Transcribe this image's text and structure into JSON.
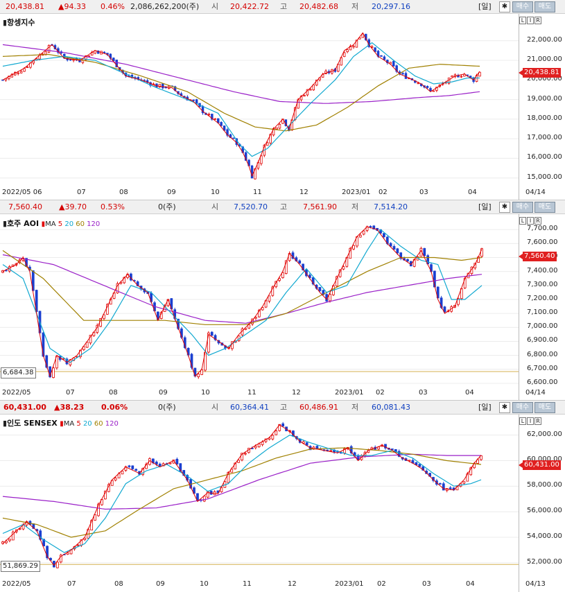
{
  "panels": [
    {
      "last": "20,438.81",
      "change": "▲94.33",
      "pct": "0.46%",
      "volume": "2,086,262,200(주)",
      "open_lbl": "시",
      "open": "20,422.72",
      "high_lbl": "고",
      "high": "20,482.68",
      "low_lbl": "저",
      "low": "20,297.16",
      "period": "[일]",
      "gear": "✱",
      "buy": "매수",
      "sell": "매도",
      "name": "항셍지수",
      "ma_prefix": "",
      "ma_labels": [],
      "last_box": "20,438.81",
      "min_box": "",
      "date_label": "04/14",
      "lr": [
        "L",
        "I",
        "R"
      ]
    },
    {
      "last": "7,560.40",
      "change": "▲39.70",
      "pct": "0.53%",
      "volume": "0(주)",
      "open_lbl": "시",
      "open": "7,520.70",
      "high_lbl": "고",
      "high": "7,561.90",
      "low_lbl": "저",
      "low": "7,514.20",
      "period": "[일]",
      "gear": "✱",
      "buy": "매수",
      "sell": "매도",
      "name": "호주 AOI",
      "ma_prefix": "MA",
      "ma_labels": [
        "5",
        "20",
        "60",
        "120"
      ],
      "last_box": "7,560.40",
      "min_box": "6,684.38",
      "date_label": "04/14",
      "lr": [
        "L",
        "I",
        "R"
      ]
    },
    {
      "last": "60,431.00",
      "change": "▲38.23",
      "pct": "0.06%",
      "volume": "0(주)",
      "open_lbl": "시",
      "open": "60,364.41",
      "high_lbl": "고",
      "high": "60,486.91",
      "low_lbl": "저",
      "low": "60,081.43",
      "period": "[일]",
      "gear": "✱",
      "buy": "매수",
      "sell": "매도",
      "name": "인도 SENSEX",
      "ma_prefix": "MA",
      "ma_labels": [
        "5",
        "20",
        "60",
        "120"
      ],
      "last_box": "60,431.00",
      "min_box": "51,869.29",
      "date_label": "04/13",
      "lr": [
        "L",
        "I",
        "R"
      ]
    }
  ],
  "colors": {
    "up": "#e00000",
    "down": "#1a3fd0",
    "ma5": "#e00000",
    "ma20": "#10a8d0",
    "ma60": "#a08000",
    "ma120": "#9a20c8",
    "minline": "#d4b050"
  },
  "chart_data": [
    {
      "type": "candlestick",
      "title": "항셍지수",
      "x_ticks": [
        "2022/05 06",
        "07",
        "08",
        "09",
        "10",
        "11",
        "12",
        "2023/01",
        "02",
        "03",
        "04"
      ],
      "y_ticks": [
        "22,000.00",
        "21,000.00",
        "20,000.00",
        "19,000.00",
        "18,000.00",
        "17,000.00",
        "16,000.00",
        "15,000.00"
      ],
      "y_values": [
        22000,
        21000,
        20000,
        19000,
        18000,
        17000,
        16000,
        15000
      ],
      "ylim": [
        14600,
        23300
      ],
      "close_path": [
        [
          0,
          20000
        ],
        [
          7,
          20600
        ],
        [
          13,
          21400
        ],
        [
          16,
          21800
        ],
        [
          20,
          21100
        ],
        [
          25,
          21000
        ],
        [
          30,
          21500
        ],
        [
          34,
          21300
        ],
        [
          40,
          20200
        ],
        [
          45,
          20000
        ],
        [
          50,
          19700
        ],
        [
          55,
          19600
        ],
        [
          58,
          19200
        ],
        [
          62,
          18900
        ],
        [
          65,
          18400
        ],
        [
          70,
          17800
        ],
        [
          73,
          17200
        ],
        [
          76,
          16800
        ],
        [
          78,
          16300
        ],
        [
          80,
          15600
        ],
        [
          81,
          15100
        ],
        [
          83,
          15800
        ],
        [
          85,
          16600
        ],
        [
          88,
          17500
        ],
        [
          91,
          18000
        ],
        [
          93,
          17500
        ],
        [
          96,
          19000
        ],
        [
          100,
          19600
        ],
        [
          104,
          20300
        ],
        [
          108,
          20500
        ],
        [
          111,
          21500
        ],
        [
          114,
          21800
        ],
        [
          116,
          22200
        ],
        [
          117,
          22400
        ],
        [
          119,
          21800
        ],
        [
          122,
          21200
        ],
        [
          126,
          20800
        ],
        [
          129,
          20300
        ],
        [
          132,
          20100
        ],
        [
          136,
          19800
        ],
        [
          139,
          19400
        ],
        [
          143,
          19800
        ],
        [
          147,
          20200
        ],
        [
          150,
          20300
        ],
        [
          153,
          20000
        ],
        [
          155,
          20439
        ]
      ],
      "ma20": [
        [
          0,
          20700
        ],
        [
          10,
          21000
        ],
        [
          20,
          21200
        ],
        [
          30,
          21000
        ],
        [
          40,
          20300
        ],
        [
          50,
          19600
        ],
        [
          60,
          19000
        ],
        [
          70,
          18300
        ],
        [
          77,
          16700
        ],
        [
          81,
          16100
        ],
        [
          86,
          16500
        ],
        [
          92,
          17500
        ],
        [
          100,
          18800
        ],
        [
          108,
          20000
        ],
        [
          114,
          21200
        ],
        [
          120,
          21900
        ],
        [
          127,
          21000
        ],
        [
          134,
          20200
        ],
        [
          140,
          19800
        ],
        [
          146,
          19900
        ],
        [
          151,
          20100
        ],
        [
          155,
          20100
        ]
      ],
      "ma60": [
        [
          0,
          21200
        ],
        [
          15,
          21300
        ],
        [
          30,
          20900
        ],
        [
          45,
          20200
        ],
        [
          60,
          19400
        ],
        [
          72,
          18300
        ],
        [
          82,
          17600
        ],
        [
          92,
          17400
        ],
        [
          102,
          17700
        ],
        [
          112,
          18600
        ],
        [
          122,
          19700
        ],
        [
          132,
          20600
        ],
        [
          142,
          20800
        ],
        [
          155,
          20700
        ]
      ],
      "ma120": [
        [
          0,
          21800
        ],
        [
          20,
          21400
        ],
        [
          40,
          20800
        ],
        [
          60,
          20000
        ],
        [
          75,
          19400
        ],
        [
          90,
          18900
        ],
        [
          105,
          18800
        ],
        [
          120,
          18900
        ],
        [
          135,
          19100
        ],
        [
          145,
          19200
        ],
        [
          155,
          19400
        ]
      ]
    },
    {
      "type": "candlestick",
      "title": "호주 AOI",
      "series_names": [
        "MA 5",
        "20",
        "60",
        "120"
      ],
      "x_ticks": [
        "2022/05",
        "07",
        "08",
        "09",
        "10",
        "11",
        "12",
        "2023/01",
        "02",
        "03",
        "04"
      ],
      "y_ticks": [
        "7,700.00",
        "7,600.00",
        "7,500.00",
        "7,400.00",
        "7,300.00",
        "7,200.00",
        "7,100.00",
        "7,000.00",
        "6,900.00",
        "6,800.00",
        "6,700.00",
        "6,600.00"
      ],
      "y_values": [
        7700,
        7600,
        7500,
        7400,
        7300,
        7200,
        7100,
        7000,
        6900,
        6800,
        6700,
        6600
      ],
      "ylim": [
        6580,
        7800
      ],
      "min_line": 6684.38,
      "close_path": [
        [
          0,
          7400
        ],
        [
          4,
          7450
        ],
        [
          6,
          7500
        ],
        [
          8,
          7400
        ],
        [
          10,
          7100
        ],
        [
          12,
          6800
        ],
        [
          14,
          6650
        ],
        [
          16,
          6800
        ],
        [
          19,
          6750
        ],
        [
          22,
          6800
        ],
        [
          25,
          6900
        ],
        [
          28,
          7000
        ],
        [
          31,
          7150
        ],
        [
          34,
          7300
        ],
        [
          37,
          7380
        ],
        [
          40,
          7300
        ],
        [
          43,
          7250
        ],
        [
          46,
          7050
        ],
        [
          49,
          7200
        ],
        [
          52,
          7000
        ],
        [
          55,
          6800
        ],
        [
          57,
          6650
        ],
        [
          59,
          6700
        ],
        [
          61,
          6950
        ],
        [
          64,
          6900
        ],
        [
          67,
          6850
        ],
        [
          70,
          6950
        ],
        [
          74,
          7050
        ],
        [
          77,
          7150
        ],
        [
          80,
          7280
        ],
        [
          83,
          7400
        ],
        [
          85,
          7530
        ],
        [
          88,
          7450
        ],
        [
          91,
          7350
        ],
        [
          94,
          7250
        ],
        [
          96,
          7200
        ],
        [
          99,
          7350
        ],
        [
          102,
          7500
        ],
        [
          105,
          7650
        ],
        [
          108,
          7720
        ],
        [
          111,
          7700
        ],
        [
          114,
          7600
        ],
        [
          118,
          7500
        ],
        [
          121,
          7450
        ],
        [
          124,
          7550
        ],
        [
          127,
          7400
        ],
        [
          129,
          7200
        ],
        [
          131,
          7100
        ],
        [
          134,
          7150
        ],
        [
          137,
          7350
        ],
        [
          140,
          7450
        ],
        [
          142,
          7560
        ]
      ],
      "ma20": [
        [
          0,
          7450
        ],
        [
          6,
          7350
        ],
        [
          10,
          7100
        ],
        [
          14,
          6850
        ],
        [
          20,
          6750
        ],
        [
          26,
          6850
        ],
        [
          32,
          7050
        ],
        [
          38,
          7300
        ],
        [
          44,
          7250
        ],
        [
          50,
          7100
        ],
        [
          56,
          6950
        ],
        [
          61,
          6800
        ],
        [
          66,
          6850
        ],
        [
          72,
          6950
        ],
        [
          78,
          7050
        ],
        [
          84,
          7250
        ],
        [
          90,
          7420
        ],
        [
          96,
          7250
        ],
        [
          102,
          7300
        ],
        [
          108,
          7550
        ],
        [
          112,
          7700
        ],
        [
          118,
          7580
        ],
        [
          124,
          7480
        ],
        [
          129,
          7450
        ],
        [
          133,
          7200
        ],
        [
          137,
          7200
        ],
        [
          142,
          7300
        ]
      ],
      "ma60": [
        [
          0,
          7550
        ],
        [
          12,
          7350
        ],
        [
          24,
          7050
        ],
        [
          36,
          7050
        ],
        [
          48,
          7050
        ],
        [
          60,
          7020
        ],
        [
          72,
          7020
        ],
        [
          84,
          7100
        ],
        [
          96,
          7250
        ],
        [
          108,
          7400
        ],
        [
          118,
          7500
        ],
        [
          128,
          7500
        ],
        [
          136,
          7480
        ],
        [
          142,
          7500
        ]
      ],
      "ma120": [
        [
          0,
          7520
        ],
        [
          15,
          7450
        ],
        [
          30,
          7300
        ],
        [
          45,
          7150
        ],
        [
          60,
          7050
        ],
        [
          72,
          7030
        ],
        [
          84,
          7100
        ],
        [
          96,
          7180
        ],
        [
          108,
          7250
        ],
        [
          120,
          7300
        ],
        [
          132,
          7350
        ],
        [
          142,
          7380
        ]
      ]
    },
    {
      "type": "candlestick",
      "title": "인도 SENSEX",
      "series_names": [
        "MA 5",
        "20",
        "60",
        "120"
      ],
      "x_ticks": [
        "2022/05",
        "07",
        "08",
        "09",
        "10",
        "11",
        "12",
        "2023/01",
        "02",
        "03",
        "04"
      ],
      "y_ticks": [
        "62,000.00",
        "60,000.00",
        "58,000.00",
        "56,000.00",
        "54,000.00",
        "52,000.00"
      ],
      "y_values": [
        62000,
        60000,
        58000,
        56000,
        54000,
        52000
      ],
      "ylim": [
        50800,
        63500
      ],
      "min_line": 51869.29,
      "close_path": [
        [
          0,
          53500
        ],
        [
          4,
          54500
        ],
        [
          7,
          55200
        ],
        [
          10,
          54500
        ],
        [
          13,
          52500
        ],
        [
          15,
          51800
        ],
        [
          17,
          52500
        ],
        [
          20,
          53000
        ],
        [
          24,
          54000
        ],
        [
          28,
          56500
        ],
        [
          32,
          58500
        ],
        [
          36,
          59500
        ],
        [
          40,
          59000
        ],
        [
          43,
          60000
        ],
        [
          46,
          59500
        ],
        [
          50,
          60000
        ],
        [
          54,
          58500
        ],
        [
          57,
          56800
        ],
        [
          60,
          57500
        ],
        [
          63,
          57400
        ],
        [
          66,
          59000
        ],
        [
          70,
          60500
        ],
        [
          74,
          61200
        ],
        [
          78,
          61800
        ],
        [
          81,
          62800
        ],
        [
          84,
          62300
        ],
        [
          87,
          61500
        ],
        [
          90,
          61000
        ],
        [
          94,
          60800
        ],
        [
          98,
          60600
        ],
        [
          101,
          61000
        ],
        [
          104,
          60000
        ],
        [
          107,
          60800
        ],
        [
          111,
          61200
        ],
        [
          114,
          60800
        ],
        [
          117,
          60200
        ],
        [
          120,
          59800
        ],
        [
          123,
          59300
        ],
        [
          126,
          58500
        ],
        [
          129,
          57800
        ],
        [
          132,
          57700
        ],
        [
          135,
          58500
        ],
        [
          138,
          59800
        ],
        [
          140,
          60431
        ]
      ],
      "ma20": [
        [
          0,
          54300
        ],
        [
          6,
          55000
        ],
        [
          12,
          53800
        ],
        [
          18,
          52800
        ],
        [
          24,
          53500
        ],
        [
          30,
          55500
        ],
        [
          36,
          58200
        ],
        [
          42,
          59200
        ],
        [
          48,
          59700
        ],
        [
          54,
          58800
        ],
        [
          60,
          57600
        ],
        [
          66,
          58200
        ],
        [
          72,
          59800
        ],
        [
          78,
          61000
        ],
        [
          84,
          62000
        ],
        [
          90,
          61400
        ],
        [
          96,
          60900
        ],
        [
          102,
          60400
        ],
        [
          108,
          60400
        ],
        [
          114,
          60800
        ],
        [
          120,
          60200
        ],
        [
          126,
          59000
        ],
        [
          132,
          58000
        ],
        [
          137,
          58200
        ],
        [
          140,
          58500
        ]
      ],
      "ma60": [
        [
          0,
          55500
        ],
        [
          10,
          55000
        ],
        [
          20,
          54000
        ],
        [
          30,
          54500
        ],
        [
          40,
          56200
        ],
        [
          50,
          57800
        ],
        [
          60,
          58500
        ],
        [
          70,
          59200
        ],
        [
          80,
          60200
        ],
        [
          90,
          60900
        ],
        [
          100,
          61000
        ],
        [
          110,
          60800
        ],
        [
          120,
          60500
        ],
        [
          130,
          60000
        ],
        [
          140,
          59700
        ]
      ],
      "ma120": [
        [
          0,
          57200
        ],
        [
          15,
          56800
        ],
        [
          30,
          56200
        ],
        [
          45,
          56300
        ],
        [
          60,
          57000
        ],
        [
          75,
          58500
        ],
        [
          90,
          59800
        ],
        [
          105,
          60300
        ],
        [
          120,
          60500
        ],
        [
          130,
          60400
        ],
        [
          140,
          60400
        ]
      ]
    }
  ]
}
